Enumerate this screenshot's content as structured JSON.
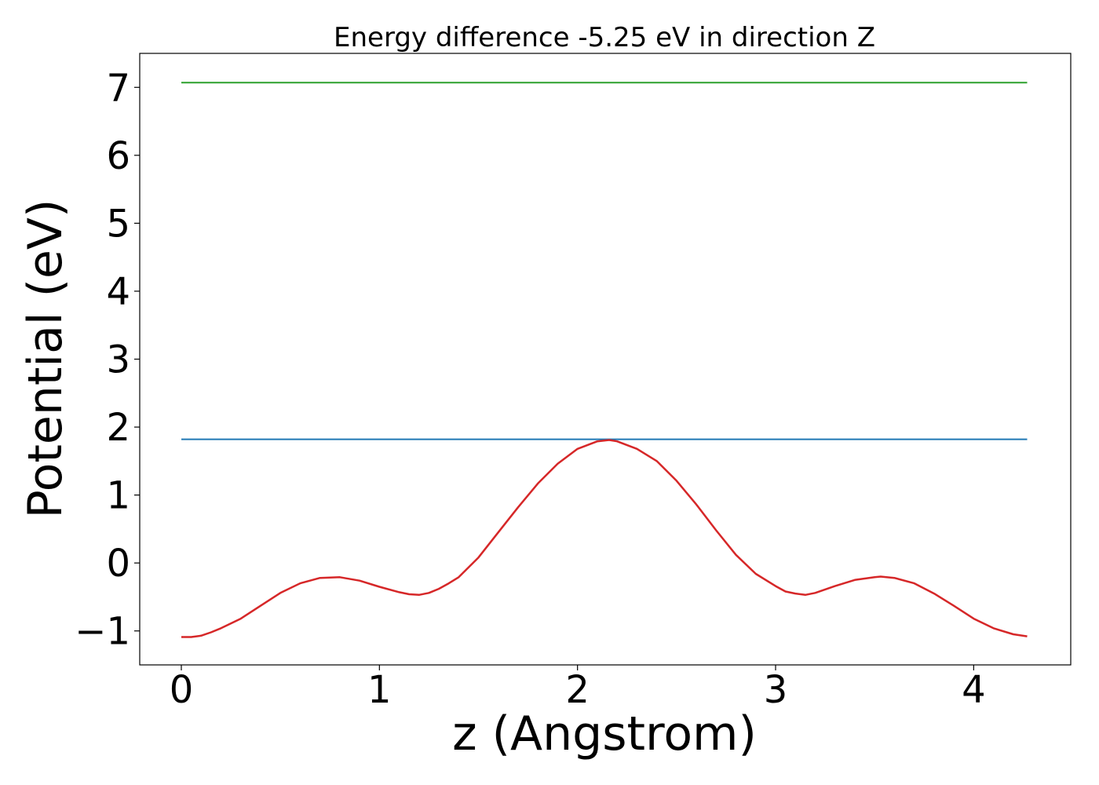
{
  "chart_data": {
    "type": "line",
    "title": "Energy difference -5.25 eV in direction Z",
    "xlabel": "z (Angstrom)",
    "ylabel": "Potential (eV)",
    "xlim": [
      -0.21,
      4.49
    ],
    "ylim": [
      -1.5,
      7.5
    ],
    "xticks": [
      0,
      1,
      2,
      3,
      4
    ],
    "xtick_labels": [
      "0",
      "1",
      "2",
      "3",
      "4"
    ],
    "yticks": [
      -1,
      0,
      1,
      2,
      3,
      4,
      5,
      6,
      7
    ],
    "ytick_labels": [
      "−1",
      "0",
      "1",
      "2",
      "3",
      "4",
      "5",
      "6",
      "7"
    ],
    "grid": false,
    "legend": "none",
    "series": [
      {
        "color": "#2ca02c",
        "x": [
          0,
          4.27
        ],
        "y": [
          7.07,
          7.07
        ]
      },
      {
        "color": "#1f77b4",
        "x": [
          0,
          4.27
        ],
        "y": [
          1.82,
          1.82
        ]
      },
      {
        "color": "#d62728",
        "x": [
          0,
          0.05,
          0.1,
          0.15,
          0.2,
          0.3,
          0.4,
          0.5,
          0.6,
          0.7,
          0.8,
          0.9,
          1.0,
          1.1,
          1.15,
          1.2,
          1.25,
          1.3,
          1.35,
          1.4,
          1.5,
          1.6,
          1.7,
          1.8,
          1.9,
          2.0,
          2.1,
          2.16,
          2.2,
          2.3,
          2.4,
          2.5,
          2.6,
          2.7,
          2.8,
          2.9,
          3.0,
          3.05,
          3.1,
          3.15,
          3.2,
          3.3,
          3.4,
          3.5,
          3.53,
          3.6,
          3.7,
          3.8,
          3.9,
          4.0,
          4.1,
          4.2,
          4.27
        ],
        "y": [
          -1.09,
          -1.09,
          -1.07,
          -1.02,
          -0.96,
          -0.82,
          -0.63,
          -0.44,
          -0.3,
          -0.22,
          -0.21,
          -0.26,
          -0.35,
          -0.43,
          -0.46,
          -0.47,
          -0.44,
          -0.38,
          -0.3,
          -0.21,
          0.08,
          0.45,
          0.82,
          1.17,
          1.46,
          1.68,
          1.79,
          1.81,
          1.79,
          1.68,
          1.5,
          1.21,
          0.86,
          0.48,
          0.12,
          -0.16,
          -0.34,
          -0.42,
          -0.45,
          -0.47,
          -0.44,
          -0.34,
          -0.25,
          -0.21,
          -0.2,
          -0.22,
          -0.3,
          -0.45,
          -0.63,
          -0.82,
          -0.96,
          -1.05,
          -1.08
        ]
      }
    ]
  }
}
